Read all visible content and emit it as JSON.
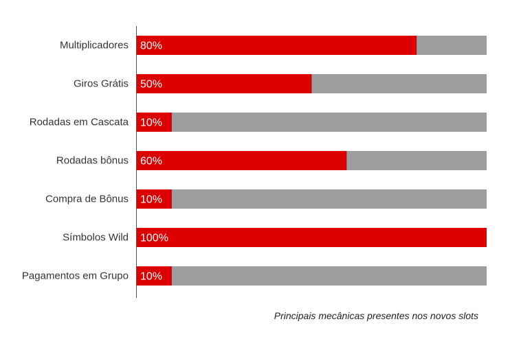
{
  "chart_data": {
    "type": "bar",
    "orientation": "horizontal",
    "stacked_to_100": true,
    "categories": [
      "Multiplicadores",
      "Giros Grátis",
      "Rodadas em Cascata",
      "Rodadas bônus",
      "Compra de Bônus",
      "Símbolos Wild",
      "Pagamentos em Grupo"
    ],
    "values": [
      80,
      50,
      10,
      60,
      10,
      100,
      10
    ],
    "value_labels": [
      "80%",
      "50%",
      "10%",
      "60%",
      "10%",
      "100%",
      "10%"
    ],
    "xlim": [
      0,
      100
    ],
    "grid": false,
    "colors": {
      "value": "#dd0000",
      "remainder": "#9e9e9e",
      "axis": "#555555"
    }
  },
  "caption": "Principais mecânicas presentes nos novos slots"
}
